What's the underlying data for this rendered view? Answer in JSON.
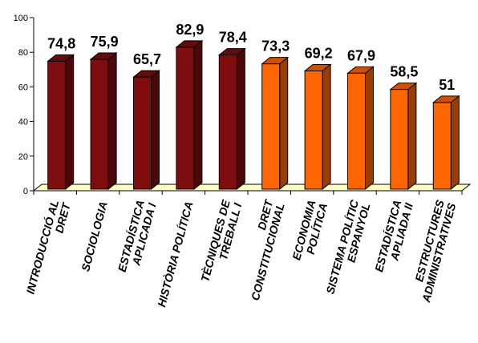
{
  "chart_data": {
    "type": "bar",
    "title": "",
    "xlabel": "",
    "ylabel": "",
    "ylim": [
      0,
      100
    ],
    "yticks": [
      0,
      20,
      40,
      60,
      80,
      100
    ],
    "grid": false,
    "legend": "none",
    "categories": [
      [
        "INTRODUCCIÓ AL",
        "DRET"
      ],
      [
        "SOCIOLOGIA"
      ],
      [
        "ESTADÍSTICA",
        "APLICADA I"
      ],
      [
        "HISTÒRIA POLÍTICA"
      ],
      [
        "TÈCNIQUES DE",
        "TREBALL I"
      ],
      [
        "DRET",
        "CONSTITUCIONAL"
      ],
      [
        "ECONOMIA",
        "POLÍTICA"
      ],
      [
        "SISTEMA POLÍTIC",
        "ESPANYOL"
      ],
      [
        "ESTADÍSTICA",
        "APLIADA II"
      ],
      [
        "ESTRUCTURES",
        "ADMINISTRATIVES"
      ]
    ],
    "values": [
      74.8,
      75.9,
      65.7,
      82.9,
      78.4,
      73.3,
      69.2,
      67.9,
      58.5,
      51
    ],
    "data_labels": [
      "74,8",
      "75,9",
      "65,7",
      "82,9",
      "78,4",
      "73,3",
      "69,2",
      "67,9",
      "58,5",
      "51"
    ],
    "bar_colors": [
      "#7f0d0d",
      "#7f0d0d",
      "#7f0d0d",
      "#7f0d0d",
      "#7f0d0d",
      "#ff6600",
      "#ff6600",
      "#ff6600",
      "#ff6600",
      "#ff6600"
    ],
    "floor_color": "#ffffc0"
  }
}
